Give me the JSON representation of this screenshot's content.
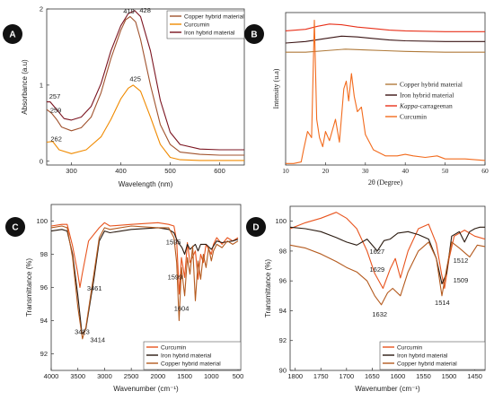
{
  "colors": {
    "copper": "#A0522D",
    "curcumin": "#F08A00",
    "iron": "#7B1420",
    "kappa": "#E8311A",
    "curcumin_b": "#F26B1D",
    "copper_b": "#B07A3A",
    "iron_b": "#3A1414",
    "curcumin_c": "#E8541E",
    "iron_c": "#2A1A10",
    "copper_c": "#B45A1E",
    "badge": "#111111"
  },
  "chart_data": [
    {
      "panel": "A",
      "type": "line",
      "xlabel": "Wavelength (nm)",
      "ylabel": "Absorbance (a.u)",
      "xlim": [
        250,
        650
      ],
      "ylim": [
        -0.05,
        2.0
      ],
      "xticks": [
        300,
        400,
        500,
        600
      ],
      "yticks": [
        0,
        1,
        2
      ],
      "legend": "top-right",
      "series": [
        {
          "name": "Copper hybrid material",
          "color": "copper",
          "x": [
            250,
            260,
            270,
            280,
            300,
            320,
            340,
            360,
            380,
            400,
            410,
            419,
            430,
            440,
            460,
            480,
            500,
            520,
            560,
            600,
            650
          ],
          "y": [
            0.68,
            0.63,
            0.55,
            0.45,
            0.4,
            0.44,
            0.58,
            0.9,
            1.35,
            1.72,
            1.86,
            1.9,
            1.83,
            1.6,
            1.0,
            0.48,
            0.22,
            0.12,
            0.09,
            0.08,
            0.08
          ]
        },
        {
          "name": "Curcumin",
          "color": "curcumin",
          "x": [
            250,
            262,
            275,
            300,
            330,
            360,
            380,
            400,
            415,
            425,
            440,
            460,
            480,
            500,
            520,
            560,
            650
          ],
          "y": [
            0.25,
            0.26,
            0.15,
            0.1,
            0.15,
            0.32,
            0.55,
            0.82,
            0.96,
            1.0,
            0.92,
            0.58,
            0.22,
            0.05,
            0.02,
            0.01,
            0.01
          ]
        },
        {
          "name": "Iron hybrid material",
          "color": "iron",
          "x": [
            250,
            257,
            270,
            285,
            300,
            320,
            340,
            360,
            380,
            400,
            415,
            428,
            440,
            460,
            480,
            500,
            520,
            560,
            600,
            650
          ],
          "y": [
            0.78,
            0.78,
            0.68,
            0.56,
            0.54,
            0.58,
            0.72,
            1.02,
            1.45,
            1.78,
            1.94,
            1.98,
            1.9,
            1.45,
            0.8,
            0.38,
            0.22,
            0.16,
            0.15,
            0.15
          ]
        }
      ],
      "annotations": [
        {
          "text": "419",
          "x": 405,
          "y": 1.94,
          "color": "copper"
        },
        {
          "text": "428",
          "x": 438,
          "y": 1.95,
          "color": "copper"
        },
        {
          "text": "257",
          "x": 255,
          "y": 0.82,
          "color": "iron"
        },
        {
          "text": "259",
          "x": 257,
          "y": 0.64,
          "color": "curcumin"
        },
        {
          "text": "262",
          "x": 258,
          "y": 0.26,
          "color": "curcumin"
        },
        {
          "text": "425",
          "x": 418,
          "y": 1.05,
          "color": "curcumin"
        }
      ]
    },
    {
      "panel": "B",
      "type": "line",
      "xlabel": "2θ (Degree)",
      "ylabel": "Intensity (u.a)",
      "xlim": [
        10,
        60
      ],
      "xticks": [
        10,
        20,
        30,
        40,
        50,
        60
      ],
      "legend": "center-right",
      "series": [
        {
          "name": "Copper hybrid material",
          "color": "copper_b",
          "x": [
            10,
            15,
            20,
            25,
            30,
            35,
            40,
            50,
            60
          ],
          "y": [
            0.74,
            0.74,
            0.75,
            0.76,
            0.755,
            0.75,
            0.745,
            0.74,
            0.74
          ]
        },
        {
          "name": "Iron hybrid material",
          "color": "iron_b",
          "x": [
            10,
            15,
            20,
            24,
            28,
            32,
            36,
            40,
            50,
            60
          ],
          "y": [
            0.8,
            0.81,
            0.83,
            0.845,
            0.84,
            0.83,
            0.82,
            0.815,
            0.81,
            0.81
          ]
        },
        {
          "name": "Kappa-carrageenan",
          "color": "kappa",
          "x": [
            10,
            15,
            18,
            21,
            24,
            28,
            32,
            36,
            40,
            50,
            60
          ],
          "y": [
            0.88,
            0.89,
            0.91,
            0.925,
            0.92,
            0.905,
            0.895,
            0.885,
            0.88,
            0.875,
            0.875
          ]
        },
        {
          "name": "Curcumin",
          "color": "curcumin_b",
          "x": [
            10,
            12,
            13.9,
            14.5,
            15.5,
            16.5,
            17.2,
            17.8,
            18.5,
            19.3,
            20,
            21,
            22.5,
            23.5,
            24.6,
            25.2,
            25.8,
            26.5,
            27.2,
            28,
            29,
            30,
            32,
            35,
            38,
            40,
            42,
            45,
            48,
            50,
            55,
            60
          ],
          "y": [
            0.01,
            0.01,
            0.02,
            0.1,
            0.22,
            0.18,
            0.95,
            0.3,
            0.18,
            0.12,
            0.22,
            0.16,
            0.3,
            0.15,
            0.5,
            0.55,
            0.42,
            0.6,
            0.45,
            0.35,
            0.38,
            0.2,
            0.1,
            0.06,
            0.06,
            0.07,
            0.06,
            0.05,
            0.06,
            0.04,
            0.04,
            0.03
          ]
        }
      ]
    },
    {
      "panel": "C",
      "type": "line",
      "xlabel": "Wavenumber (cm⁻¹)",
      "ylabel": "Transmittance (%)",
      "xlim": [
        4000,
        450
      ],
      "ylim": [
        91,
        101
      ],
      "xticks": [
        4000,
        3500,
        3000,
        2500,
        2000,
        1500,
        1000,
        500
      ],
      "yticks": [
        92,
        94,
        96,
        98,
        100
      ],
      "legend": "bottom-right",
      "series": [
        {
          "name": "Curcumin",
          "color": "curcumin_c",
          "x": [
            4000,
            3800,
            3700,
            3600,
            3510,
            3461,
            3420,
            3300,
            3100,
            3000,
            2900,
            2500,
            2000,
            1800,
            1700,
            1650,
            1604,
            1599,
            1560,
            1500,
            1450,
            1400,
            1300,
            1250,
            1200,
            1150,
            1100,
            1000,
            960,
            900,
            800,
            700,
            600,
            500
          ],
          "y": [
            99.7,
            99.8,
            99.8,
            98.5,
            97,
            96.0,
            96.8,
            98.8,
            99.6,
            99.9,
            99.7,
            99.8,
            99.9,
            99.8,
            99.7,
            98.8,
            95.8,
            95.6,
            97.8,
            96.6,
            98.7,
            97.5,
            98.2,
            96.5,
            98.0,
            97.5,
            98.6,
            98.0,
            98.6,
            99.0,
            98.6,
            99.0,
            98.8,
            99.0
          ]
        },
        {
          "name": "Iron hybrid material",
          "color": "iron_c",
          "x": [
            4000,
            3800,
            3700,
            3600,
            3500,
            3423,
            3350,
            3200,
            3100,
            3000,
            2900,
            2500,
            2000,
            1800,
            1700,
            1650,
            1595,
            1550,
            1500,
            1450,
            1400,
            1300,
            1250,
            1200,
            1100,
            1000,
            900,
            800,
            600,
            500
          ],
          "y": [
            99.4,
            99.5,
            99.4,
            98.0,
            95.5,
            93.2,
            93.5,
            96.5,
            98.8,
            99.4,
            99.3,
            99.5,
            99.6,
            99.5,
            99.3,
            98.9,
            98.6,
            98.4,
            98.0,
            98.6,
            98.3,
            98.6,
            98.2,
            98.6,
            98.6,
            98.3,
            98.8,
            98.7,
            98.8,
            98.9
          ]
        },
        {
          "name": "Copper hybrid material",
          "color": "copper_c",
          "x": [
            4000,
            3800,
            3700,
            3600,
            3500,
            3414,
            3350,
            3200,
            3100,
            3000,
            2900,
            2500,
            2000,
            1800,
            1700,
            1650,
            1604,
            1560,
            1500,
            1450,
            1400,
            1350,
            1300,
            1250,
            1200,
            1150,
            1100,
            1050,
            1000,
            960,
            900,
            800,
            700,
            600,
            500
          ],
          "y": [
            99.6,
            99.7,
            99.6,
            97.8,
            94.8,
            92.9,
            93.6,
            96.8,
            99.0,
            99.6,
            99.5,
            99.7,
            99.6,
            99.6,
            99.0,
            97.5,
            94.0,
            97.2,
            95.5,
            97.8,
            96.8,
            98.5,
            95.2,
            97.6,
            96.5,
            98.0,
            97.2,
            98.4,
            97.6,
            98.2,
            98.6,
            98.4,
            98.8,
            98.6,
            98.8
          ]
        }
      ],
      "annotations": [
        {
          "text": "3461",
          "x": 3330,
          "y": 95.8,
          "color": "curcumin_c"
        },
        {
          "text": "3423",
          "x": 3560,
          "y": 93.2,
          "color": "iron_c"
        },
        {
          "text": "3414",
          "x": 3270,
          "y": 92.7,
          "color": "copper_c"
        },
        {
          "text": "1595",
          "x": 1850,
          "y": 98.6,
          "color": "iron_c"
        },
        {
          "text": "1599",
          "x": 1820,
          "y": 96.5,
          "color": "curcumin_c"
        },
        {
          "text": "1604",
          "x": 1700,
          "y": 94.6,
          "color": "copper_c"
        }
      ]
    },
    {
      "panel": "D",
      "type": "line",
      "xlabel": "Wavenumber (cm⁻¹)",
      "ylabel": "Transmittance (%)",
      "xlim": [
        1810,
        1430
      ],
      "ylim": [
        90,
        101
      ],
      "xticks": [
        1800,
        1750,
        1700,
        1650,
        1600,
        1550,
        1500,
        1450
      ],
      "yticks": [
        90,
        92,
        94,
        96,
        98,
        100
      ],
      "legend": "bottom-right",
      "series": [
        {
          "name": "Curcumin",
          "color": "curcumin_c",
          "x": [
            1810,
            1780,
            1750,
            1720,
            1700,
            1680,
            1660,
            1645,
            1629,
            1615,
            1605,
            1595,
            1580,
            1560,
            1540,
            1525,
            1515,
            1509,
            1500,
            1490,
            1470,
            1450,
            1430
          ],
          "y": [
            99.5,
            99.9,
            100.2,
            100.6,
            100.2,
            99.5,
            98.0,
            96.5,
            95.5,
            96.8,
            97.5,
            96.2,
            98.0,
            99.5,
            99.8,
            98.5,
            96.5,
            95.5,
            97.5,
            99.0,
            99.4,
            99.0,
            98.8
          ]
        },
        {
          "name": "Iron hybrid material",
          "color": "iron_c",
          "x": [
            1810,
            1780,
            1750,
            1720,
            1700,
            1680,
            1660,
            1640,
            1627,
            1615,
            1600,
            1580,
            1560,
            1540,
            1525,
            1514,
            1505,
            1495,
            1480,
            1470,
            1460,
            1450,
            1440,
            1430
          ],
          "y": [
            99.6,
            99.5,
            99.3,
            98.9,
            98.6,
            98.4,
            98.8,
            98.0,
            98.7,
            98.8,
            99.2,
            99.3,
            99.1,
            98.8,
            97.5,
            95.8,
            96.5,
            99.0,
            99.3,
            98.6,
            99.3,
            99.5,
            99.6,
            99.6
          ]
        },
        {
          "name": "Copper hybrid material",
          "color": "copper_c",
          "x": [
            1810,
            1780,
            1750,
            1720,
            1700,
            1680,
            1660,
            1645,
            1632,
            1620,
            1610,
            1595,
            1580,
            1560,
            1540,
            1525,
            1514,
            1505,
            1495,
            1480,
            1460,
            1445,
            1430
          ],
          "y": [
            98.4,
            98.2,
            97.8,
            97.3,
            96.9,
            96.6,
            96.0,
            95.0,
            94.4,
            95.2,
            95.5,
            95.0,
            96.6,
            98.0,
            98.6,
            97.5,
            95.0,
            96.8,
            98.6,
            98.2,
            97.6,
            98.4,
            98.3
          ]
        }
      ],
      "annotations": [
        {
          "text": "1627",
          "x": 1655,
          "y": 97.8,
          "color": "iron_c"
        },
        {
          "text": "1629",
          "x": 1655,
          "y": 96.6,
          "color": "copper_c"
        },
        {
          "text": "1632",
          "x": 1650,
          "y": 93.6,
          "color": "copper_c"
        },
        {
          "text": "1512",
          "x": 1492,
          "y": 97.2,
          "color": "iron_c"
        },
        {
          "text": "1509",
          "x": 1492,
          "y": 95.9,
          "color": "curcumin_c"
        },
        {
          "text": "1514",
          "x": 1528,
          "y": 94.4,
          "color": "copper_c"
        }
      ]
    }
  ],
  "panels": {
    "A": {
      "badge": "A"
    },
    "B": {
      "badge": "B"
    },
    "C": {
      "badge": "C"
    },
    "D": {
      "badge": "D"
    }
  }
}
